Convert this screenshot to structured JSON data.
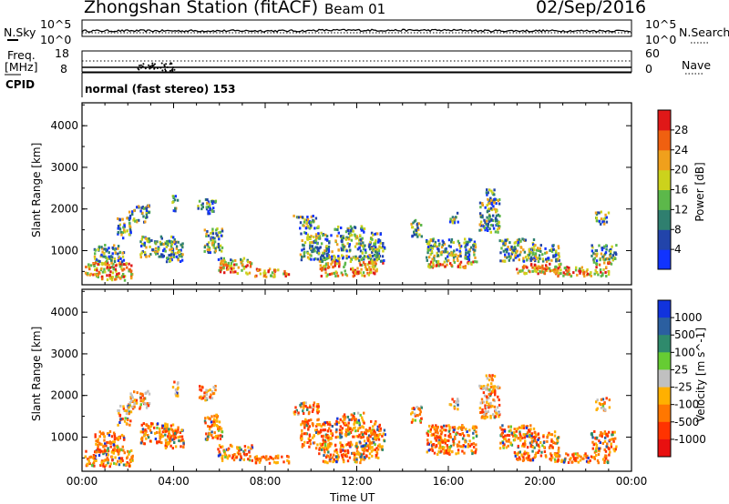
{
  "header": {
    "station": "Zhongshan Station (fitACF)",
    "beam": "Beam 01",
    "date": "02/Sep/2016"
  },
  "panels": {
    "nsky": {
      "left_label": "N.Sky",
      "right_label": "N.Search",
      "left_ticks": [
        "10^5",
        "10^0"
      ],
      "right_ticks": [
        "10^5",
        "10^0"
      ]
    },
    "freq": {
      "left_label_1": "Freq.",
      "left_label_2": "[MHz]",
      "right_label": "Nave",
      "left_ticks": [
        "18",
        "8"
      ],
      "right_ticks": [
        "60",
        "0"
      ]
    },
    "cpid": {
      "label": "CPID",
      "text": "normal (fast stereo) 153"
    }
  },
  "chart_data": [
    {
      "type": "heatmap",
      "title": "",
      "xlabel": "",
      "ylabel": "Slant Range [km]",
      "x_ticks": [
        "00:00",
        "04:00",
        "08:00",
        "12:00",
        "16:00",
        "20:00",
        "00:00"
      ],
      "y_ticks": [
        "1000",
        "2000",
        "3000",
        "4000"
      ],
      "ylim": [
        180,
        4550
      ],
      "colorbar": {
        "label": "Power [dB]",
        "ticks": [
          "4",
          "8",
          "12",
          "16",
          "20",
          "24",
          "28"
        ],
        "colors": [
          "#1133ff",
          "#2244aa",
          "#2f7f6f",
          "#5cb84a",
          "#ccd21c",
          "#f0a01c",
          "#f06010",
          "#e01818"
        ]
      }
    },
    {
      "type": "heatmap",
      "title": "",
      "xlabel": "Time UT",
      "ylabel": "Slant Range [km]",
      "x_ticks": [
        "00:00",
        "04:00",
        "08:00",
        "12:00",
        "16:00",
        "20:00",
        "00:00"
      ],
      "y_ticks": [
        "1000",
        "2000",
        "3000",
        "4000"
      ],
      "ylim": [
        180,
        4550
      ],
      "colorbar": {
        "label": "Velocity [m s^-1]",
        "ticks": [
          "1000",
          "500",
          "100",
          "25",
          "-25",
          "-100",
          "-500",
          "-1000"
        ],
        "colors": [
          "#1133dd",
          "#2b5fa0",
          "#2f8a6c",
          "#66cc33",
          "#c0c0c0",
          "#ffb000",
          "#ff7700",
          "#ff3300",
          "#e81010"
        ]
      }
    }
  ]
}
